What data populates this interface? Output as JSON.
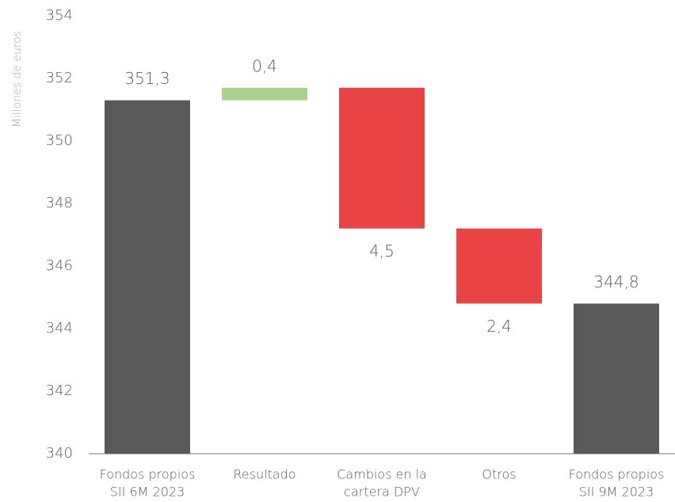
{
  "chart_data": {
    "type": "waterfall",
    "y_axis_label": "Millones de euros",
    "categories": [
      [
        "Fondos propios",
        "SII 6M 2023"
      ],
      [
        "Resultado"
      ],
      [
        "Cambios en la",
        "cartera DPV"
      ],
      [
        "Otros"
      ],
      [
        "Fondos propios",
        "SII 9M 2023"
      ]
    ],
    "values": [
      351.3,
      0.4,
      -4.5,
      -2.4,
      344.8
    ],
    "value_labels": [
      "351,3",
      "0,4",
      "4,5",
      "2,4",
      "344,8"
    ],
    "measures": [
      "total",
      "relative",
      "relative",
      "relative",
      "total"
    ],
    "colors": {
      "total": "#595959",
      "increase": "#a9d18e",
      "decrease": "#e84446"
    },
    "ylim": [
      340,
      354
    ],
    "yticks": [
      340,
      342,
      344,
      346,
      348,
      350,
      352,
      354
    ],
    "grid": false
  }
}
